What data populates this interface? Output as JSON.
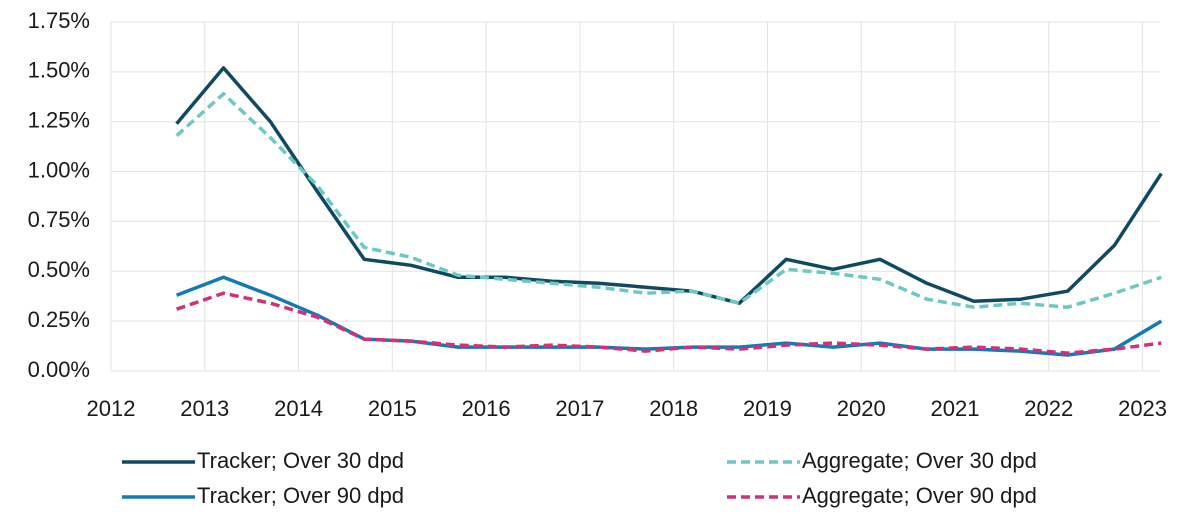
{
  "chart_data": {
    "type": "line",
    "x": [
      2012.7,
      2013.2,
      2013.7,
      2014.2,
      2014.7,
      2015.2,
      2015.7,
      2016.2,
      2016.7,
      2017.2,
      2017.7,
      2018.2,
      2018.7,
      2019.2,
      2019.7,
      2020.2,
      2020.7,
      2021.2,
      2021.7,
      2022.2,
      2022.7,
      2023.2
    ],
    "xlim": [
      2012,
      2023.25
    ],
    "xticks": [
      2012,
      2013,
      2014,
      2015,
      2016,
      2017,
      2018,
      2019,
      2020,
      2021,
      2022,
      2023
    ],
    "ylim": [
      0,
      1.75
    ],
    "yticks": [
      {
        "value": 0,
        "label": "0.00%"
      },
      {
        "value": 0.25,
        "label": "0.25%"
      },
      {
        "value": 0.5,
        "label": "0.50%"
      },
      {
        "value": 0.75,
        "label": "0.75%"
      },
      {
        "value": 1,
        "label": "1.00%"
      },
      {
        "value": 1.25,
        "label": "1.25%"
      },
      {
        "value": 1.5,
        "label": "1.50%"
      },
      {
        "value": 1.75,
        "label": "1.75%"
      }
    ],
    "grid": true,
    "legend": "bottom",
    "series": [
      {
        "name": "Tracker; Over 30 dpd",
        "color": "#0f4a62",
        "style": "solid",
        "values": [
          1.24,
          1.52,
          1.25,
          0.9,
          0.56,
          0.53,
          0.47,
          0.47,
          0.45,
          0.44,
          0.42,
          0.4,
          0.34,
          0.56,
          0.51,
          0.56,
          0.44,
          0.35,
          0.36,
          0.4,
          0.63,
          0.99
        ]
      },
      {
        "name": "Aggregate; Over 30 dpd",
        "color": "#6cc8c2",
        "style": "dashed",
        "values": [
          1.18,
          1.39,
          1.17,
          0.93,
          0.62,
          0.57,
          0.48,
          0.46,
          0.44,
          0.42,
          0.39,
          0.4,
          0.34,
          0.51,
          0.49,
          0.46,
          0.36,
          0.32,
          0.34,
          0.32,
          0.39,
          0.47
        ]
      },
      {
        "name": "Tracker; Over 90 dpd",
        "color": "#1479b5",
        "style": "solid",
        "values": [
          0.38,
          0.47,
          0.38,
          0.28,
          0.16,
          0.15,
          0.12,
          0.12,
          0.12,
          0.12,
          0.11,
          0.12,
          0.12,
          0.14,
          0.12,
          0.14,
          0.11,
          0.11,
          0.1,
          0.08,
          0.11,
          0.25
        ]
      },
      {
        "name": "Aggregate; Over 90 dpd",
        "color": "#d1317b",
        "style": "dashed",
        "values": [
          0.31,
          0.39,
          0.34,
          0.27,
          0.16,
          0.15,
          0.13,
          0.12,
          0.13,
          0.12,
          0.1,
          0.12,
          0.11,
          0.13,
          0.14,
          0.13,
          0.11,
          0.12,
          0.11,
          0.09,
          0.11,
          0.14
        ]
      }
    ]
  }
}
